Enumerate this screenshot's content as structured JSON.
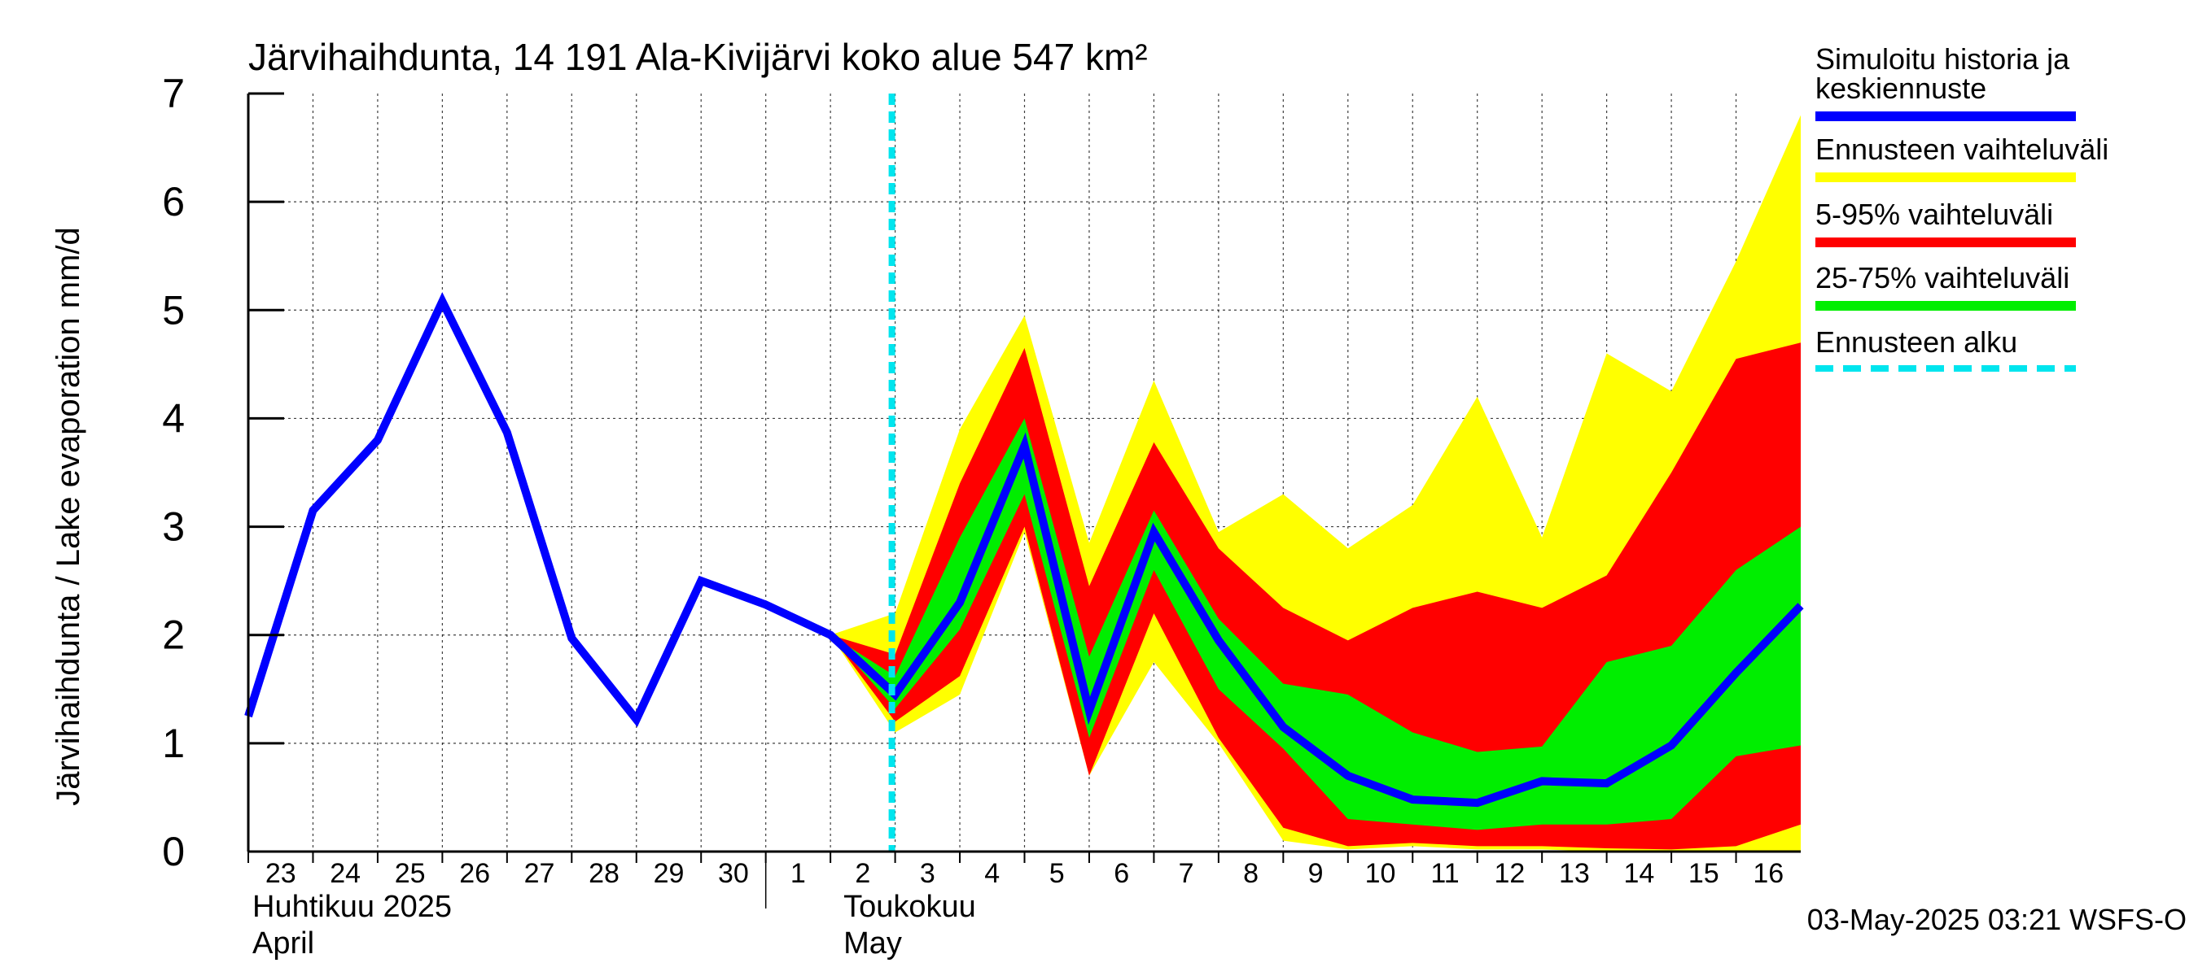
{
  "chart_data": {
    "type": "area",
    "title": "Järvihaihdunta, 14 191 Ala-Kivijärvi koko alue 547 km²",
    "ylabel": "Järvihaihdunta / Lake evaporation   mm/d",
    "ylim": [
      0,
      7
    ],
    "yticks": [
      0,
      1,
      2,
      3,
      4,
      5,
      6,
      7
    ],
    "x_day_labels": [
      "23",
      "24",
      "25",
      "26",
      "27",
      "28",
      "29",
      "30",
      "1",
      "2",
      "3",
      "4",
      "5",
      "6",
      "7",
      "8",
      "9",
      "10",
      "11",
      "12",
      "13",
      "14",
      "15",
      "16"
    ],
    "month_labels": [
      {
        "fi": "Huhtikuu  2025",
        "en": "April"
      },
      {
        "fi": "Toukokuu",
        "en": "May"
      }
    ],
    "grid": true,
    "forecast_start_day_index": 10,
    "history": {
      "name": "Simuloitu historia ja keskiennuste",
      "x": [
        0,
        1,
        2,
        3,
        4,
        5,
        6,
        7,
        8,
        9
      ],
      "values": [
        1.25,
        3.15,
        3.8,
        5.08,
        3.87,
        1.97,
        1.22,
        2.5,
        2.28,
        2.0
      ]
    },
    "forecast": {
      "x": [
        9,
        10,
        11,
        12,
        13,
        14,
        15,
        16,
        17,
        18,
        19,
        20,
        21,
        22,
        23,
        24
      ],
      "median": [
        2.0,
        1.45,
        2.3,
        3.75,
        1.3,
        2.95,
        1.95,
        1.15,
        0.7,
        0.48,
        0.45,
        0.65,
        0.63,
        0.98,
        1.65,
        2.27
      ],
      "p25": [
        2.0,
        1.32,
        2.05,
        3.3,
        1.05,
        2.6,
        1.5,
        0.95,
        0.3,
        0.25,
        0.2,
        0.25,
        0.25,
        0.3,
        0.88,
        0.98
      ],
      "p75": [
        2.0,
        1.62,
        2.9,
        4.0,
        1.8,
        3.15,
        2.15,
        1.55,
        1.45,
        1.1,
        0.92,
        0.97,
        1.75,
        1.9,
        2.6,
        3.0
      ],
      "p5": [
        2.0,
        1.2,
        1.62,
        3.0,
        0.7,
        2.2,
        1.05,
        0.22,
        0.05,
        0.08,
        0.05,
        0.05,
        0.03,
        0.02,
        0.05,
        0.25
      ],
      "p95": [
        2.0,
        1.82,
        3.4,
        4.65,
        2.45,
        3.78,
        2.8,
        2.25,
        1.95,
        2.25,
        2.4,
        2.25,
        2.55,
        3.5,
        4.55,
        4.7
      ],
      "min": [
        2.0,
        1.1,
        1.45,
        2.95,
        0.7,
        1.75,
        1.0,
        0.1,
        0.02,
        0.05,
        0.02,
        0.02,
        0.0,
        0.0,
        0.0,
        0.0
      ],
      "max": [
        2.0,
        2.2,
        3.9,
        4.95,
        2.85,
        4.35,
        2.95,
        3.3,
        2.8,
        3.2,
        4.2,
        2.9,
        4.6,
        4.25,
        5.45,
        6.8
      ]
    },
    "series_colors": {
      "history": "#0000ff",
      "range": "#ffff00",
      "p5_95": "#ff0000",
      "p25_75": "#00ee00",
      "forecast_start": "#00e5ee"
    }
  },
  "legend": [
    {
      "label": "Simuloitu historia ja\nkeskiennuste",
      "color": "#0000ff"
    },
    {
      "label": "Ennusteen vaihteluväli",
      "color": "#ffff00"
    },
    {
      "label": "5-95% vaihteluväli",
      "color": "#ff0000"
    },
    {
      "label": "25-75% vaihteluväli",
      "color": "#00ee00"
    },
    {
      "label": "Ennusteen alku",
      "color": "#00e5ee",
      "dashed": true
    }
  ],
  "footer": "03-May-2025 03:21 WSFS-O"
}
